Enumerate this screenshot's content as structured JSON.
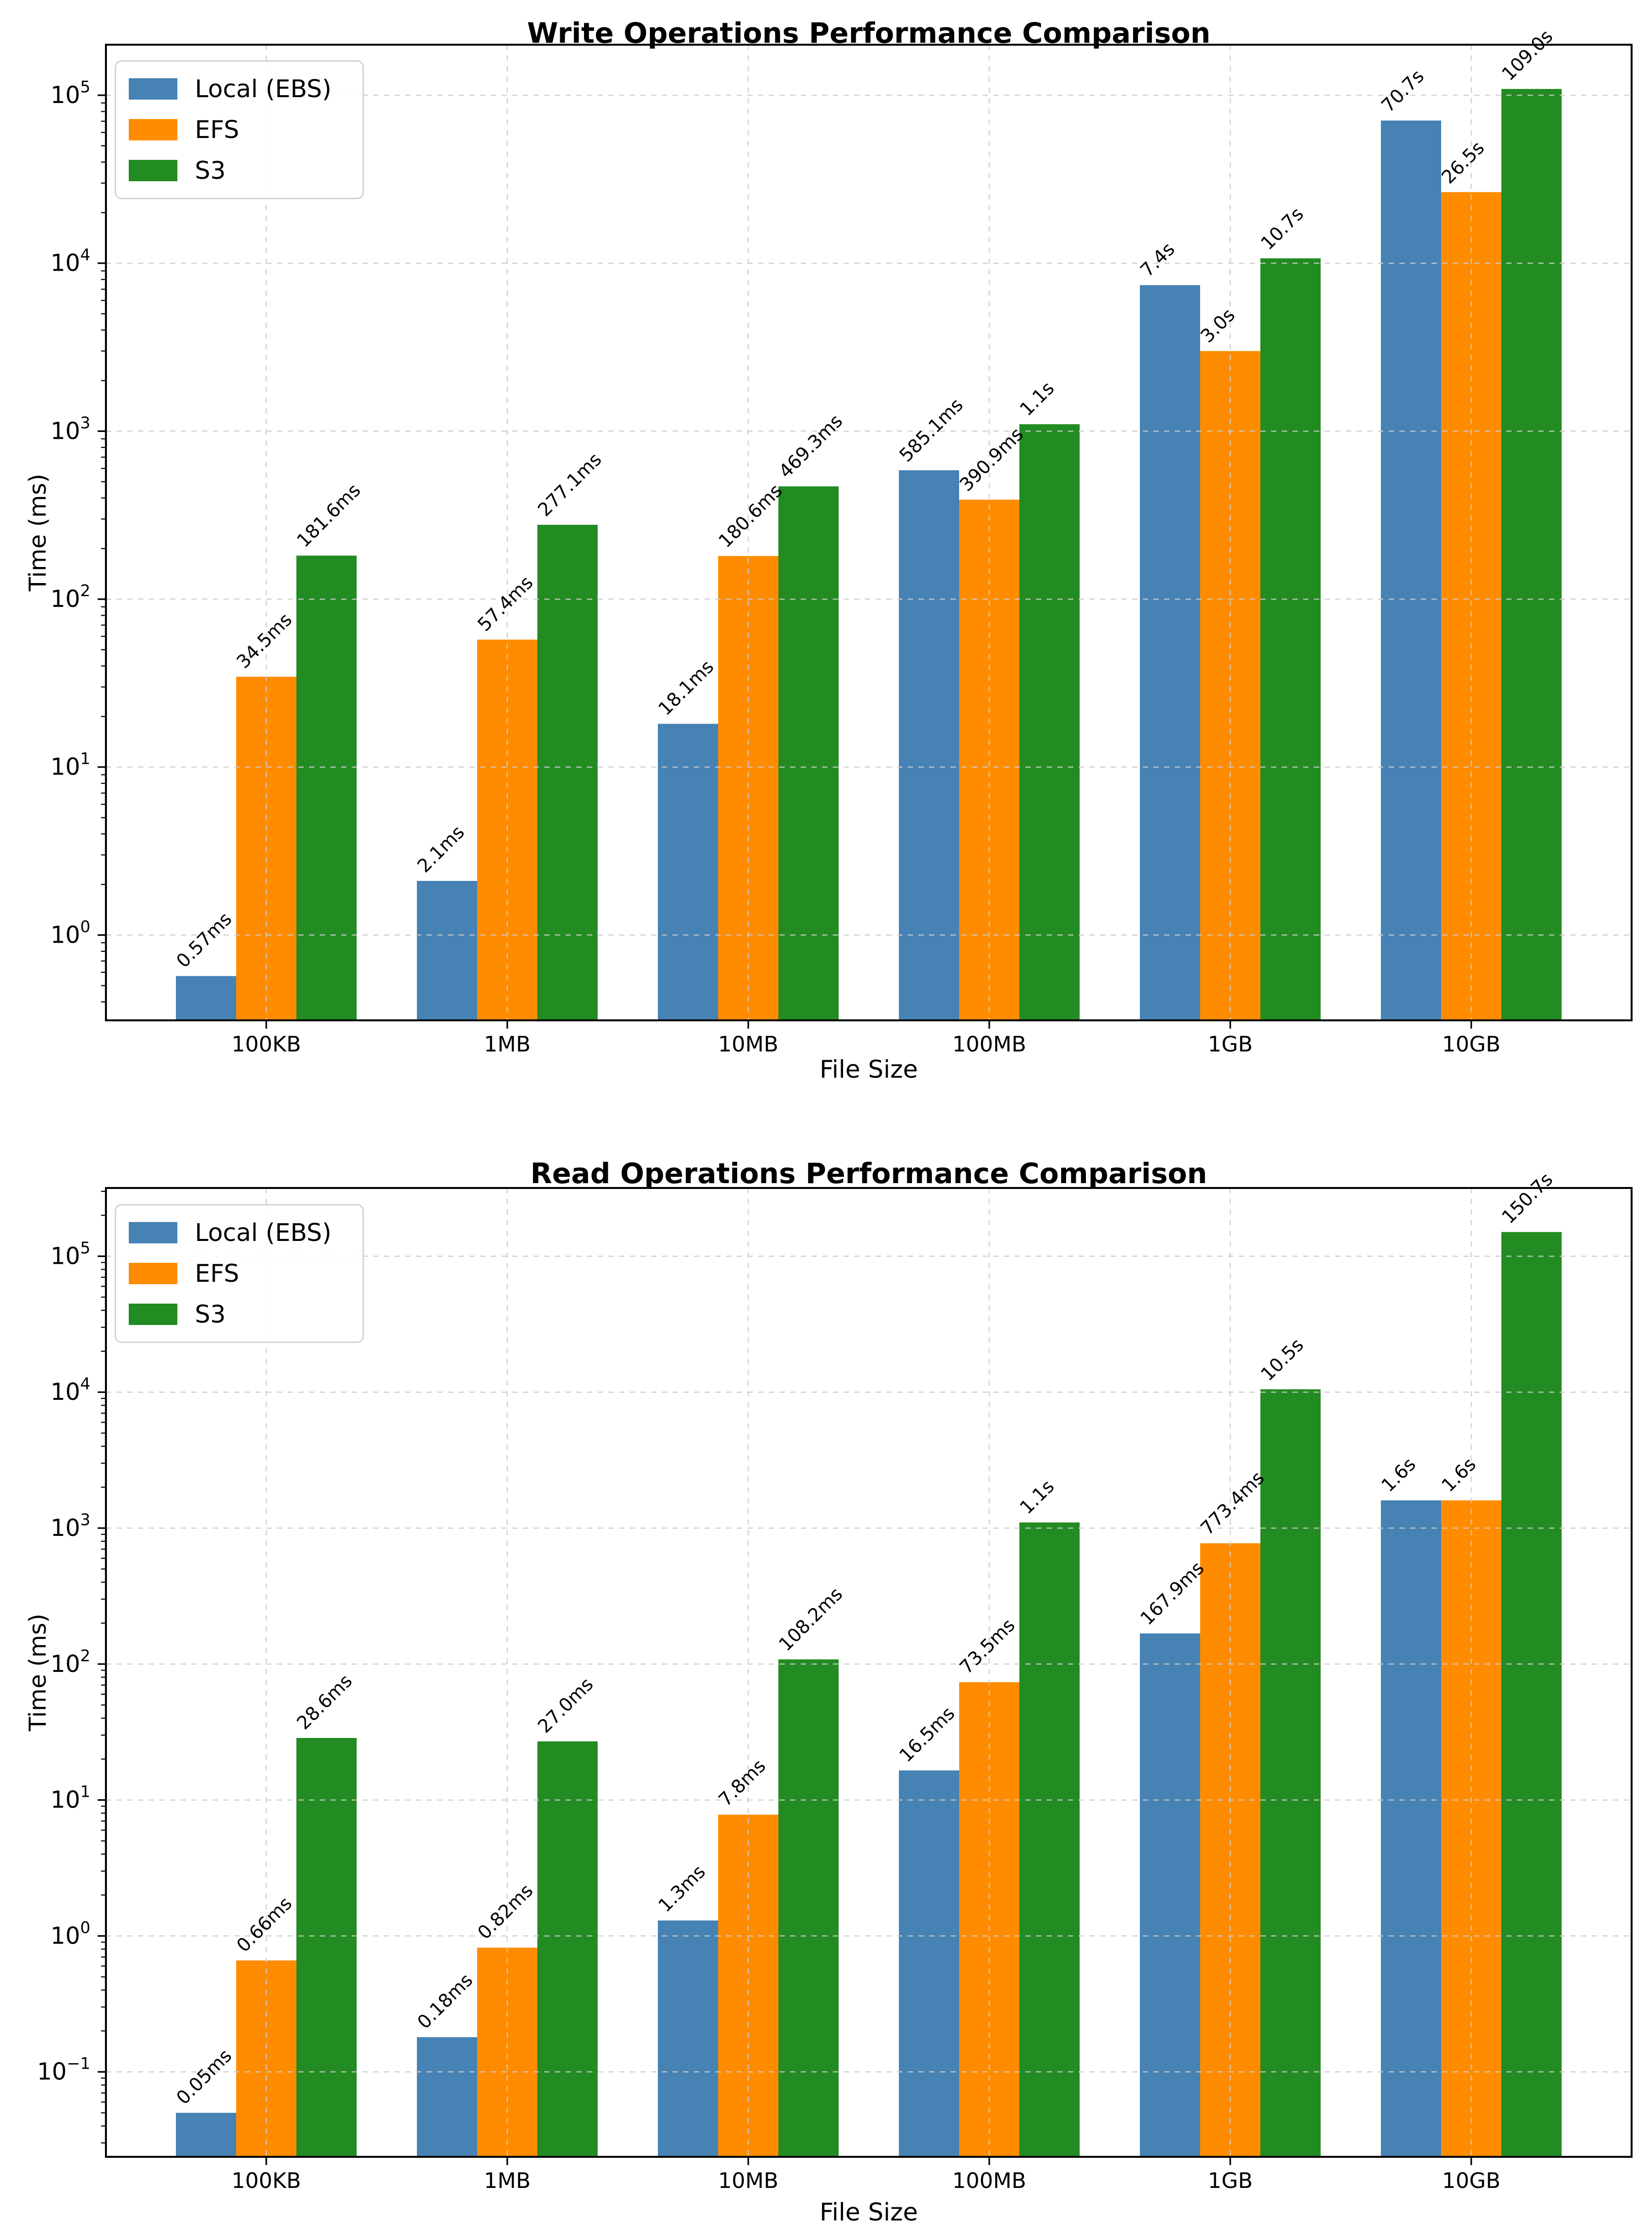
{
  "figure_background": "#ffffff",
  "axis_color": "#000000",
  "grid_color": "#cccccc",
  "chart_data": [
    {
      "type": "bar",
      "yscale": "log",
      "title": "Write Operations Performance Comparison",
      "xlabel": "File Size",
      "ylabel": "Time (ms)",
      "categories": [
        "100KB",
        "1MB",
        "10MB",
        "100MB",
        "1GB",
        "10GB"
      ],
      "series": [
        {
          "name": "Local (EBS)",
          "color": "#4682b4",
          "values": [
            0.57,
            2.1,
            18.1,
            585.1,
            7400,
            70700
          ],
          "labels": [
            "0.57ms",
            "2.1ms",
            "18.1ms",
            "585.1ms",
            "7.4s",
            "70.7s"
          ]
        },
        {
          "name": "EFS",
          "color": "#ff8c00",
          "values": [
            34.5,
            57.4,
            180.6,
            390.9,
            3000,
            26500
          ],
          "labels": [
            "34.5ms",
            "57.4ms",
            "180.6ms",
            "390.9ms",
            "3.0s",
            "26.5s"
          ]
        },
        {
          "name": "S3",
          "color": "#228b22",
          "values": [
            181.6,
            277.1,
            469.3,
            1100,
            10700,
            109000
          ],
          "labels": [
            "181.6ms",
            "277.1ms",
            "469.3ms",
            "1.1s",
            "10.7s",
            "109.0s"
          ]
        }
      ],
      "ylim_exp": [
        -0.508,
        5.301
      ],
      "ytick_exponents": [
        0,
        1,
        2,
        3,
        4,
        5
      ],
      "grid": {
        "style": "dashed",
        "axes": "both",
        "on": true
      },
      "legend": {
        "position": "upper left",
        "entries": [
          "Local (EBS)",
          "EFS",
          "S3"
        ]
      }
    },
    {
      "type": "bar",
      "yscale": "log",
      "title": "Read Operations Performance Comparison",
      "xlabel": "File Size",
      "ylabel": "Time (ms)",
      "categories": [
        "100KB",
        "1MB",
        "10MB",
        "100MB",
        "1GB",
        "10GB"
      ],
      "series": [
        {
          "name": "Local (EBS)",
          "color": "#4682b4",
          "values": [
            0.05,
            0.18,
            1.3,
            16.5,
            167.9,
            1600
          ],
          "labels": [
            "0.05ms",
            "0.18ms",
            "1.3ms",
            "16.5ms",
            "167.9ms",
            "1.6s"
          ]
        },
        {
          "name": "EFS",
          "color": "#ff8c00",
          "values": [
            0.66,
            0.82,
            7.8,
            73.5,
            773.4,
            1600
          ],
          "labels": [
            "0.66ms",
            "0.82ms",
            "7.8ms",
            "73.5ms",
            "773.4ms",
            "1.6s"
          ]
        },
        {
          "name": "S3",
          "color": "#228b22",
          "values": [
            28.6,
            27.0,
            108.2,
            1100,
            10500,
            150700
          ],
          "labels": [
            "28.6ms",
            "27.0ms",
            "108.2ms",
            "1.1s",
            "10.5s",
            "150.7s"
          ]
        }
      ],
      "ylim_exp": [
        -1.625,
        5.502
      ],
      "ytick_exponents": [
        -1,
        0,
        1,
        2,
        3,
        4,
        5
      ],
      "grid": {
        "style": "dashed",
        "axes": "both",
        "on": true
      },
      "legend": {
        "position": "upper left",
        "entries": [
          "Local (EBS)",
          "EFS",
          "S3"
        ]
      }
    }
  ]
}
